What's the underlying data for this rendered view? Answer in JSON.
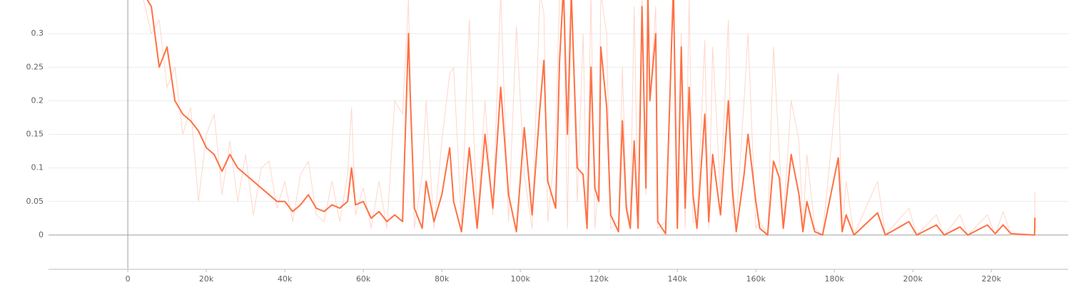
{
  "chart_data": {
    "type": "line",
    "x": [
      4000,
      6000,
      8000,
      10000,
      12000,
      14000,
      16000,
      18000,
      20000,
      22000,
      24000,
      26000,
      28000,
      30000,
      32000,
      34000,
      36000,
      38000,
      40000,
      42000,
      44000,
      46000,
      48000,
      50000,
      52000,
      54000,
      56000,
      57000,
      58000,
      60000,
      62000,
      64000,
      66000,
      68000,
      70000,
      71500,
      72000,
      73000,
      75000,
      76000,
      78000,
      80000,
      82000,
      83000,
      85000,
      87000,
      89000,
      91000,
      93000,
      95000,
      97000,
      99000,
      101000,
      103000,
      105000,
      106000,
      107000,
      109000,
      110000,
      111000,
      112000,
      113000,
      114500,
      116000,
      117000,
      118000,
      119000,
      120000,
      120500,
      122000,
      123000,
      125000,
      126000,
      127000,
      128000,
      129000,
      130000,
      131000,
      132000,
      132500,
      133000,
      134500,
      135000,
      137000,
      139000,
      140000,
      141000,
      142000,
      143000,
      144000,
      145000,
      147000,
      148000,
      149000,
      151000,
      153000,
      154000,
      155000,
      157000,
      158000,
      160000,
      161000,
      163000,
      164500,
      166000,
      167000,
      169000,
      171000,
      172000,
      173000,
      175000,
      177000,
      181000,
      182000,
      183000,
      185000,
      191000,
      193000,
      196000,
      199000,
      201000,
      206000,
      208000,
      212000,
      214000,
      219000,
      221000,
      223000,
      225000,
      231000,
      231100
    ],
    "series": [
      {
        "color": "#ffccbc",
        "values": [
          0.35,
          0.3,
          0.32,
          0.22,
          0.25,
          0.15,
          0.19,
          0.05,
          0.15,
          0.18,
          0.06,
          0.14,
          0.05,
          0.12,
          0.03,
          0.1,
          0.11,
          0.04,
          0.08,
          0.02,
          0.09,
          0.11,
          0.03,
          0.02,
          0.08,
          0.02,
          0.09,
          0.19,
          0.03,
          0.07,
          0.01,
          0.08,
          0.01,
          0.2,
          0.18,
          0.35,
          0.2,
          0.01,
          0.09,
          0.2,
          0.01,
          0.14,
          0.24,
          0.25,
          0.02,
          0.32,
          0.02,
          0.2,
          0.03,
          0.36,
          0.02,
          0.31,
          0.09,
          0.01,
          0.36,
          0.33,
          0.02,
          0.14,
          0.36,
          0.36,
          0.01,
          0.36,
          0.05,
          0.3,
          0.02,
          0.36,
          0.01,
          0.09,
          0.36,
          0.3,
          0.01,
          0.02,
          0.25,
          0.05,
          0.02,
          0.34,
          0.02,
          0.36,
          0.06,
          0.36,
          0.2,
          0.34,
          0.01,
          0.02,
          0.36,
          0.02,
          0.3,
          0.01,
          0.35,
          0.02,
          0.02,
          0.29,
          0.01,
          0.28,
          0.06,
          0.32,
          0.03,
          0.02,
          0.2,
          0.3,
          0.01,
          0.02,
          0,
          0.28,
          0.12,
          0.02,
          0.2,
          0.14,
          0.01,
          0.12,
          0.01,
          0,
          0.24,
          0.01,
          0.08,
          0,
          0.08,
          0,
          0.02,
          0.04,
          0,
          0.03,
          0,
          0.03,
          0,
          0.03,
          0,
          0.035,
          0,
          0,
          0.065
        ]
      },
      {
        "color": "#ff7043",
        "values": [
          0.36,
          0.34,
          0.25,
          0.28,
          0.2,
          0.18,
          0.17,
          0.155,
          0.13,
          0.12,
          0.095,
          0.12,
          0.1,
          0.09,
          0.08,
          0.07,
          0.06,
          0.05,
          0.05,
          0.035,
          0.045,
          0.06,
          0.04,
          0.035,
          0.045,
          0.04,
          0.05,
          0.1,
          0.045,
          0.05,
          0.025,
          0.035,
          0.02,
          0.03,
          0.02,
          0.3,
          0.2,
          0.04,
          0.01,
          0.08,
          0.02,
          0.06,
          0.13,
          0.05,
          0.005,
          0.13,
          0.01,
          0.15,
          0.04,
          0.22,
          0.06,
          0.005,
          0.16,
          0.03,
          0.19,
          0.26,
          0.08,
          0.04,
          0.26,
          0.37,
          0.15,
          0.36,
          0.1,
          0.09,
          0.01,
          0.25,
          0.07,
          0.05,
          0.28,
          0.19,
          0.03,
          0.005,
          0.17,
          0.04,
          0.01,
          0.14,
          0.01,
          0.34,
          0.07,
          0.36,
          0.2,
          0.3,
          0.02,
          0.002,
          0.37,
          0.01,
          0.28,
          0.04,
          0.22,
          0.06,
          0.01,
          0.18,
          0.02,
          0.12,
          0.03,
          0.2,
          0.07,
          0.005,
          0.09,
          0.15,
          0.05,
          0.01,
          0,
          0.11,
          0.085,
          0.01,
          0.12,
          0.06,
          0.005,
          0.05,
          0.005,
          0,
          0.115,
          0.005,
          0.03,
          0,
          0.033,
          0,
          0.01,
          0.02,
          0,
          0.015,
          0,
          0.012,
          0,
          0.015,
          0.002,
          0.015,
          0.002,
          0,
          0.026
        ]
      }
    ],
    "xlim": [
      -20200,
      239600
    ],
    "ylim": [
      -0.05,
      0.35
    ],
    "xticks": [
      {
        "value": 0,
        "label": "0"
      },
      {
        "value": 20000,
        "label": "20k"
      },
      {
        "value": 40000,
        "label": "40k"
      },
      {
        "value": 60000,
        "label": "60k"
      },
      {
        "value": 80000,
        "label": "80k"
      },
      {
        "value": 100000,
        "label": "100k"
      },
      {
        "value": 120000,
        "label": "120k"
      },
      {
        "value": 140000,
        "label": "140k"
      },
      {
        "value": 160000,
        "label": "160k"
      },
      {
        "value": 180000,
        "label": "180k"
      },
      {
        "value": 200000,
        "label": "200k"
      },
      {
        "value": 220000,
        "label": "220k"
      }
    ],
    "yticks": [
      0,
      0.05,
      0.1,
      0.15,
      0.2,
      0.25,
      0.3
    ],
    "grid": true
  }
}
